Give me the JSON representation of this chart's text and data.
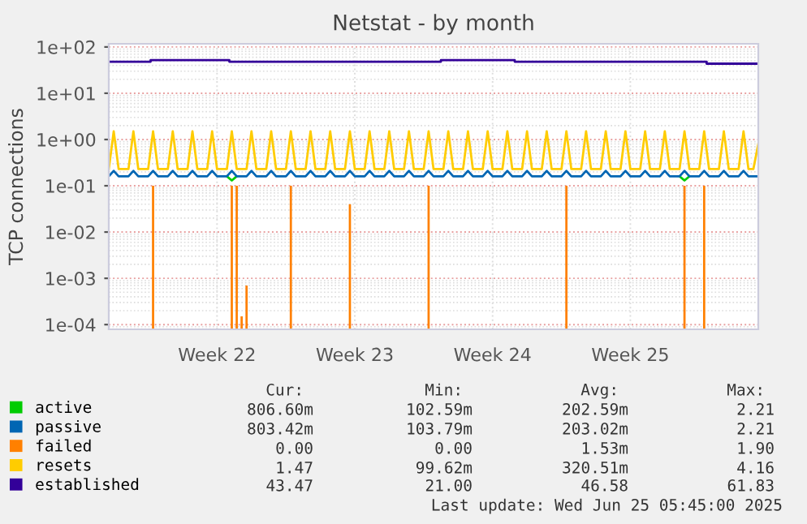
{
  "chart_data": {
    "type": "line",
    "title": "Netstat - by month",
    "ylabel": "TCP connections",
    "log": "y",
    "ylim": [
      7.9e-05,
      117
    ],
    "yticks": [
      {
        "value": 0.0001,
        "label": "1e-04"
      },
      {
        "value": 0.001,
        "label": "1e-03"
      },
      {
        "value": 0.01,
        "label": "1e-02"
      },
      {
        "value": 0.1,
        "label": "1e-01"
      },
      {
        "value": 1,
        "label": "1e+00"
      },
      {
        "value": 10,
        "label": "1e+01"
      },
      {
        "value": 100,
        "label": "1e+02"
      }
    ],
    "grid": true,
    "legend": "bottom left",
    "categories": [
      null,
      null,
      null,
      null,
      null,
      null,
      null,
      null,
      null,
      null,
      null,
      null,
      null,
      null,
      null,
      null,
      null,
      null,
      null,
      null,
      null,
      null,
      "Week 22",
      null,
      null,
      null,
      null,
      null,
      null,
      null,
      null,
      null,
      null,
      null,
      null,
      null,
      null,
      null,
      null,
      null,
      null,
      null,
      null,
      null,
      null,
      null,
      null,
      null,
      null,
      null,
      "Week 23",
      null,
      null,
      null,
      null,
      null,
      null,
      null,
      null,
      null,
      null,
      null,
      null,
      null,
      null,
      null,
      null,
      null,
      null,
      null,
      null,
      null,
      null,
      null,
      null,
      null,
      null,
      null,
      "Week 24",
      null,
      null,
      null,
      null,
      null,
      null,
      null,
      null,
      null,
      null,
      null,
      null,
      null,
      null,
      null,
      null,
      null,
      null,
      null,
      null,
      null,
      null,
      null,
      null,
      null,
      null,
      null,
      "Week 25",
      null,
      null,
      null,
      null,
      null,
      null,
      null,
      null,
      null,
      null,
      null,
      null,
      null,
      null,
      null,
      null,
      null,
      null,
      null,
      null,
      null,
      null,
      null,
      null,
      null,
      null
    ],
    "series": [
      {
        "name": "active",
        "color": "#00cc00",
        "values": [
          null,
          null,
          null,
          null,
          null,
          null,
          null,
          null,
          null,
          null,
          null,
          null,
          null,
          null,
          null,
          null,
          null,
          null,
          null,
          null,
          null,
          null,
          null,
          null,
          0.16,
          0.13,
          0.16,
          null,
          null,
          null,
          null,
          null,
          null,
          null,
          null,
          null,
          null,
          null,
          null,
          null,
          null,
          null,
          null,
          null,
          null,
          null,
          null,
          null,
          null,
          null,
          null,
          null,
          null,
          null,
          null,
          null,
          null,
          null,
          null,
          null,
          null,
          null,
          null,
          null,
          null,
          null,
          null,
          null,
          null,
          null,
          null,
          null,
          null,
          null,
          null,
          null,
          null,
          null,
          null,
          null,
          null,
          null,
          null,
          null,
          null,
          null,
          null,
          null,
          null,
          null,
          null,
          null,
          null,
          null,
          null,
          null,
          null,
          null,
          null,
          null,
          null,
          null,
          null,
          null,
          null,
          null,
          null,
          null,
          null,
          null,
          null,
          null,
          null,
          null,
          null,
          null,
          0.16,
          0.13,
          0.16,
          null,
          null,
          null,
          null,
          null,
          null,
          null,
          null,
          null,
          null,
          null,
          null,
          null,
          null
        ]
      },
      {
        "name": "passive",
        "color": "#0066b3",
        "values": [
          0.16,
          0.21,
          0.16,
          0.16,
          0.16,
          0.21,
          0.16,
          0.16,
          0.16,
          0.21,
          0.16,
          0.16,
          0.16,
          0.21,
          0.16,
          0.16,
          0.16,
          0.21,
          0.16,
          0.16,
          0.16,
          0.21,
          0.16,
          0.16,
          0.16,
          0.21,
          0.16,
          0.16,
          0.16,
          0.21,
          0.16,
          0.16,
          0.16,
          0.21,
          0.16,
          0.16,
          0.16,
          0.21,
          0.16,
          0.16,
          0.16,
          0.21,
          0.16,
          0.16,
          0.16,
          0.21,
          0.16,
          0.16,
          0.16,
          0.21,
          0.16,
          0.16,
          0.16,
          0.21,
          0.16,
          0.16,
          0.16,
          0.21,
          0.16,
          0.16,
          0.16,
          0.21,
          0.16,
          0.16,
          0.16,
          0.21,
          0.16,
          0.16,
          0.16,
          0.21,
          0.16,
          0.16,
          0.16,
          0.21,
          0.16,
          0.16,
          0.16,
          0.21,
          0.16,
          0.16,
          0.16,
          0.21,
          0.16,
          0.16,
          0.16,
          0.21,
          0.16,
          0.16,
          0.16,
          0.21,
          0.16,
          0.16,
          0.16,
          0.21,
          0.16,
          0.16,
          0.16,
          0.21,
          0.16,
          0.16,
          0.16,
          0.21,
          0.16,
          0.16,
          0.16,
          0.21,
          0.16,
          0.16,
          0.16,
          0.21,
          0.16,
          0.16,
          0.16,
          0.21,
          0.16,
          0.16,
          0.16,
          0.21,
          0.16,
          0.16,
          0.16,
          0.21,
          0.16,
          0.16,
          0.16,
          0.21,
          0.16,
          0.16,
          0.16,
          0.21,
          0.16,
          0.16,
          0.16
        ]
      },
      {
        "name": "failed",
        "type": "bar",
        "color": "#ff8000",
        "values": [
          null,
          null,
          null,
          null,
          null,
          null,
          null,
          null,
          null,
          0.1,
          null,
          null,
          null,
          null,
          null,
          null,
          null,
          null,
          null,
          null,
          null,
          null,
          null,
          null,
          null,
          0.1,
          0.1,
          0.00015,
          0.0007,
          null,
          null,
          null,
          null,
          null,
          null,
          null,
          null,
          0.1,
          null,
          null,
          null,
          null,
          null,
          null,
          null,
          null,
          null,
          null,
          null,
          0.04,
          null,
          null,
          null,
          null,
          null,
          null,
          null,
          null,
          null,
          null,
          null,
          null,
          null,
          null,
          null,
          0.1,
          null,
          null,
          null,
          null,
          null,
          null,
          null,
          null,
          null,
          null,
          null,
          null,
          null,
          null,
          null,
          null,
          null,
          null,
          null,
          null,
          null,
          null,
          null,
          null,
          null,
          null,
          null,
          0.1,
          null,
          null,
          null,
          null,
          null,
          null,
          null,
          null,
          null,
          null,
          null,
          null,
          null,
          null,
          null,
          null,
          null,
          null,
          null,
          null,
          null,
          null,
          null,
          0.1,
          null,
          null,
          null,
          0.1,
          null,
          null,
          null,
          null,
          null,
          null,
          null,
          null,
          null,
          null,
          null
        ]
      },
      {
        "name": "resets",
        "color": "#ffcc00",
        "values": [
          0.23,
          1.5,
          0.23,
          0.23,
          0.23,
          1.5,
          0.23,
          0.23,
          0.23,
          1.5,
          0.23,
          0.23,
          0.23,
          1.5,
          0.23,
          0.23,
          0.23,
          1.5,
          0.23,
          0.23,
          0.23,
          1.5,
          0.23,
          0.23,
          0.23,
          1.5,
          0.23,
          0.23,
          0.23,
          1.5,
          0.23,
          0.23,
          0.23,
          1.5,
          0.23,
          0.23,
          0.23,
          1.5,
          0.23,
          0.23,
          0.23,
          1.5,
          0.23,
          0.23,
          0.23,
          1.5,
          0.23,
          0.23,
          0.23,
          1.5,
          0.23,
          0.23,
          0.23,
          1.5,
          0.23,
          0.23,
          0.23,
          1.5,
          0.23,
          0.23,
          0.23,
          1.5,
          0.23,
          0.23,
          0.23,
          1.5,
          0.23,
          0.23,
          0.23,
          1.5,
          0.23,
          0.23,
          0.23,
          1.5,
          0.23,
          0.23,
          0.23,
          1.5,
          0.23,
          0.23,
          0.23,
          1.5,
          0.23,
          0.23,
          0.23,
          1.5,
          0.23,
          0.23,
          0.23,
          1.5,
          0.23,
          0.23,
          0.23,
          1.5,
          0.23,
          0.23,
          0.23,
          1.5,
          0.23,
          0.23,
          0.23,
          1.5,
          0.23,
          0.23,
          0.23,
          1.5,
          0.23,
          0.23,
          0.23,
          1.5,
          0.23,
          0.23,
          0.23,
          1.5,
          0.23,
          0.23,
          0.23,
          1.5,
          0.23,
          0.23,
          0.23,
          1.5,
          0.23,
          0.23,
          0.23,
          1.5,
          0.23,
          0.23,
          0.23,
          1.5,
          0.23,
          0.23,
          0.8
        ]
      },
      {
        "name": "established",
        "type": "step",
        "color": "#330099",
        "values": [
          48,
          48,
          48,
          48,
          48,
          48,
          48,
          48,
          48,
          52,
          52,
          52,
          52,
          52,
          52,
          52,
          52,
          52,
          52,
          52,
          52,
          52,
          52,
          52,
          52,
          48,
          48,
          48,
          48,
          48,
          48,
          48,
          48,
          48,
          48,
          48,
          48,
          48,
          48,
          48,
          48,
          48,
          48,
          48,
          48,
          48,
          48,
          48,
          48,
          48,
          48,
          48,
          48,
          48,
          48,
          48,
          48,
          48,
          48,
          48,
          48,
          48,
          48,
          48,
          48,
          48,
          48,
          48,
          52,
          52,
          52,
          52,
          52,
          52,
          52,
          52,
          52,
          52,
          52,
          52,
          52,
          52,
          52,
          48,
          48,
          48,
          48,
          48,
          48,
          48,
          48,
          48,
          48,
          48,
          48,
          48,
          48,
          48,
          48,
          48,
          48,
          48,
          48,
          48,
          48,
          48,
          48,
          48,
          48,
          48,
          48,
          48,
          48,
          48,
          48,
          48,
          48,
          48,
          48,
          48,
          48,
          48,
          43.5,
          43.5,
          43.5,
          43.5,
          43.5,
          43.5,
          43.5,
          43.5,
          43.5,
          43.5,
          43.5
        ]
      }
    ],
    "annotations": [
      "Cur:",
      "Min:",
      "Avg:",
      "Max:",
      "806.60m",
      "102.59m",
      "202.59m",
      "2.21",
      "803.42m",
      "103.79m",
      "203.02m",
      "2.21",
      "0.00",
      "0.00",
      "1.53m",
      "1.90",
      "1.47",
      "99.62m",
      "320.51m",
      "4.16",
      "43.47",
      "21.00",
      "46.58",
      "61.83",
      "Last update: Wed Jun 25 05:45:00 2025"
    ]
  }
}
